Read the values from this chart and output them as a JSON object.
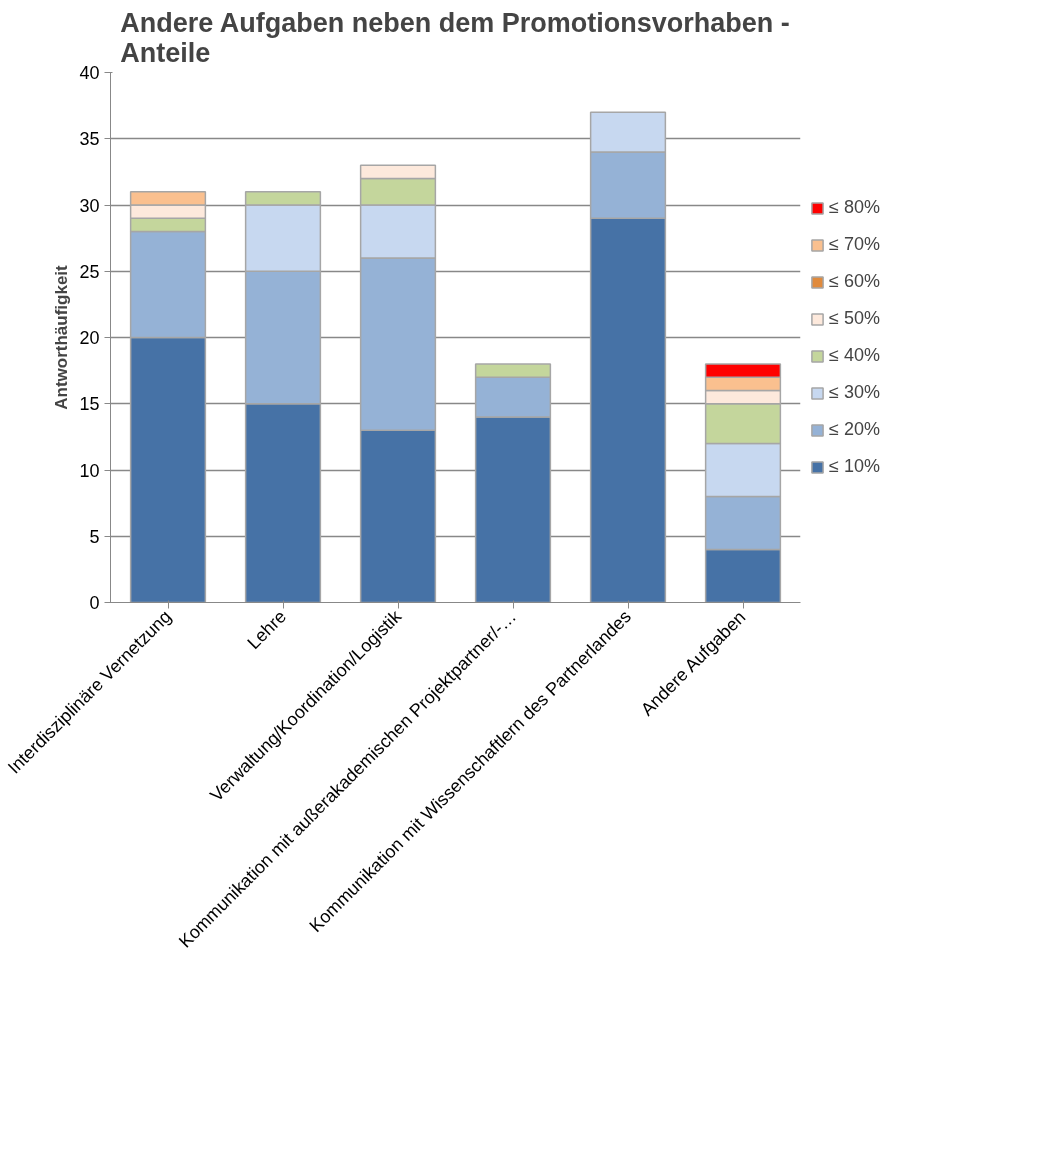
{
  "chart_data": {
    "type": "bar",
    "stacked": true,
    "title": "Andere Aufgaben neben dem Promotionsvorhaben - Anteile",
    "ylabel": "Antworthäufigkeit",
    "categories": [
      "Interdisziplinäre Vernetzung",
      "Lehre",
      "Verwaltung/Koordination/Logistik",
      "Kommunikation mit außerakademischen Projektpartner/-…",
      "Kommunikation mit Wissenschaftlern des Partnerlandes",
      "Andere Aufgaben"
    ],
    "series": [
      {
        "name": "≤ 10%",
        "color": "#4672a6",
        "values": [
          20,
          15,
          13,
          14,
          29,
          4
        ]
      },
      {
        "name": "≤ 20%",
        "color": "#95b2d6",
        "values": [
          8,
          10,
          13,
          3,
          5,
          4
        ]
      },
      {
        "name": "≤ 30%",
        "color": "#c7d8f0",
        "values": [
          0,
          5,
          4,
          0,
          3,
          4
        ]
      },
      {
        "name": "≤ 40%",
        "color": "#c4d69c",
        "values": [
          1,
          1,
          2,
          1,
          0,
          3
        ]
      },
      {
        "name": "≤ 50%",
        "color": "#fde9dc",
        "values": [
          1,
          0,
          1,
          0,
          0,
          1
        ]
      },
      {
        "name": "≤ 60%",
        "color": "#e08a3c",
        "values": [
          0,
          0,
          0,
          0,
          0,
          0
        ]
      },
      {
        "name": "≤ 70%",
        "color": "#fac08f",
        "values": [
          1,
          0,
          0,
          0,
          0,
          1
        ]
      },
      {
        "name": "≤ 80%",
        "color": "#ff0000",
        "values": [
          0,
          0,
          0,
          0,
          0,
          1
        ]
      }
    ],
    "ylim": [
      0,
      40
    ],
    "yticks": [
      0,
      5,
      10,
      15,
      20,
      25,
      30,
      35,
      40
    ],
    "grid": "y",
    "legend": "right"
  }
}
